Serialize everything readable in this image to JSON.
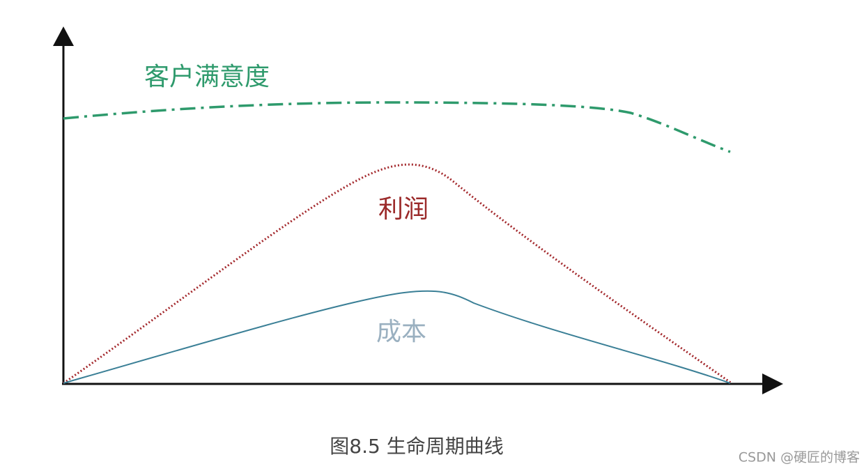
{
  "curves": [
    {
      "label": "客户满意度"
    },
    {
      "label": "利润"
    },
    {
      "label": "成本"
    }
  ],
  "caption": "图8.5 生命周期曲线",
  "watermark": "CSDN @硬匠的博客"
}
